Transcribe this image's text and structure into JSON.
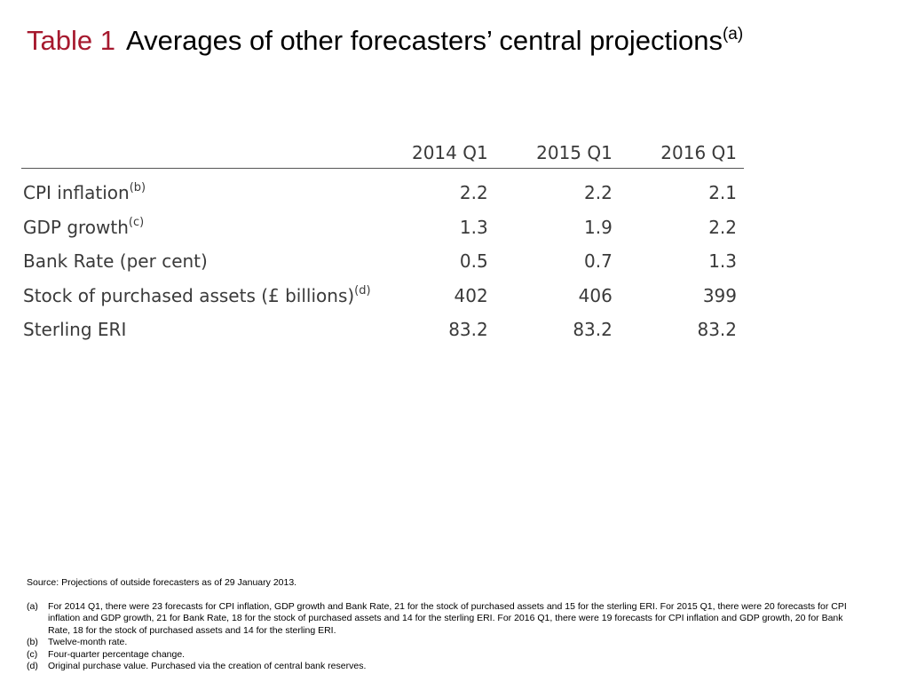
{
  "title": {
    "label": "Table 1",
    "text": "Averages of other forecasters’ central projections",
    "note_ref": "(a)"
  },
  "colors": {
    "title_label": "#a6192e",
    "table_text": "#3a3a3a",
    "rule": "#555555"
  },
  "table": {
    "columns": [
      "2014 Q1",
      "2015 Q1",
      "2016 Q1"
    ],
    "rows": [
      {
        "label": "CPI inflation",
        "note": "(b)",
        "values": [
          "2.2",
          "2.2",
          "2.1"
        ]
      },
      {
        "label": "GDP growth",
        "note": "(c)",
        "values": [
          "1.3",
          "1.9",
          "2.2"
        ]
      },
      {
        "label": "Bank Rate (per cent)",
        "note": "",
        "values": [
          "0.5",
          "0.7",
          "1.3"
        ]
      },
      {
        "label": "Stock of purchased assets (£ billions)",
        "note": "(d)",
        "values": [
          "402",
          "406",
          "399"
        ]
      },
      {
        "label": "Sterling ERI",
        "note": "",
        "values": [
          "83.2",
          "83.2",
          "83.2"
        ]
      }
    ]
  },
  "source": "Source:  Projections of outside forecasters as of 29 January 2013.",
  "footnotes": [
    {
      "mark": "(a)",
      "text": "For 2014 Q1, there were 23 forecasts for CPI inflation, GDP growth and Bank Rate, 21 for the stock of purchased assets and 15 for the sterling ERI.  For 2015 Q1, there were 20 forecasts for CPI inflation and GDP growth, 21 for Bank Rate, 18 for the stock of purchased assets and 14 for the sterling ERI.  For 2016 Q1, there were 19 forecasts for CPI inflation and GDP growth, 20 for Bank Rate, 18 for the stock of purchased assets and 14 for the sterling ERI."
    },
    {
      "mark": "(b)",
      "text": "Twelve-month rate."
    },
    {
      "mark": "(c)",
      "text": "Four-quarter percentage change."
    },
    {
      "mark": "(d)",
      "text": "Original purchase value.  Purchased via the creation of central bank reserves."
    }
  ]
}
